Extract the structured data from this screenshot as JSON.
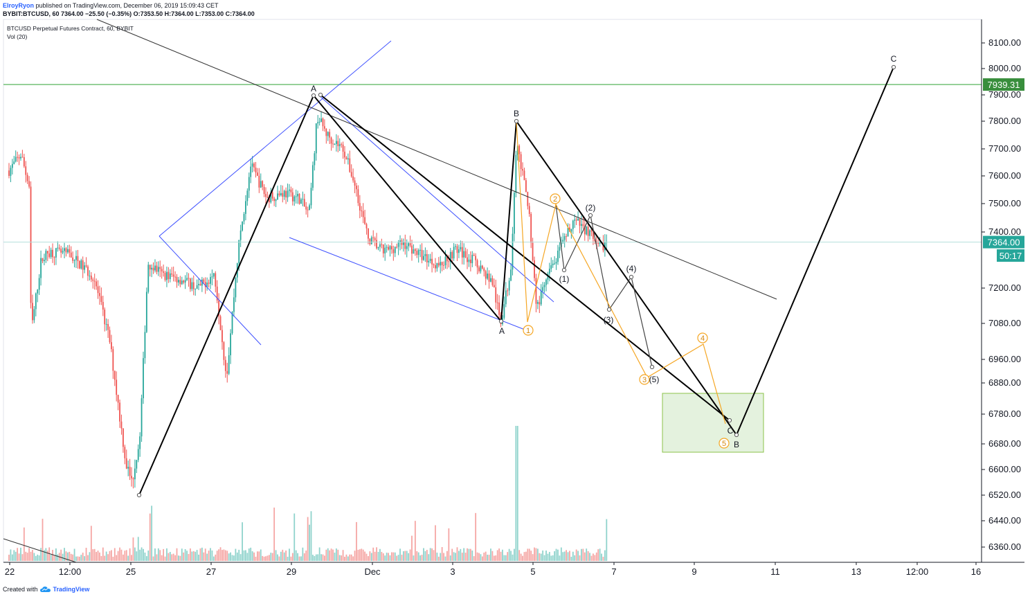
{
  "header": {
    "author": "ElroyRyon",
    "published": "published on TradingView.com, December 06, 2019 15:09:43 CET",
    "ohlc": "BYBIT:BTCUSD, 60  7364.00  −25.50 (−0.35%)  O:7353.50  H:7364.00  L:7353.00  C:7364.00"
  },
  "footer": {
    "created": "Created with",
    "brand": "TradingView",
    "logo_icon": "tradingview-logo-icon"
  },
  "chart_data": {
    "type": "candlestick",
    "title": "BTCUSD Perpetual Futures Contract, 60, BYBIT",
    "indicator": "Vol (20)",
    "ylim": [
      6300,
      8180
    ],
    "x_ticks": [
      "22",
      "12:00",
      "25",
      "27",
      "29",
      "Dec",
      "3",
      "5",
      "7",
      "9",
      "11",
      "13",
      "12:00",
      "16"
    ],
    "y_ticks": [
      6360,
      6440,
      6520,
      6600,
      6680,
      6780,
      6880,
      6960,
      7080,
      7200,
      7400,
      7500,
      7600,
      7700,
      7800,
      7900,
      8000,
      8100
    ],
    "y_tick_labels": [
      "6360.00",
      "6440.00",
      "6520.00",
      "6600.00",
      "6680.00",
      "6780.00",
      "6880.00",
      "6960.00",
      "7080.00",
      "7200.00",
      "7400.00",
      "7500.00",
      "7600.00",
      "7700.00",
      "7800.00",
      "7900.00",
      "8000.00",
      "8100.00"
    ],
    "price_labels": [
      {
        "text": "7939.31",
        "value": 7939.31,
        "color": "#388e3c"
      },
      {
        "text": "7364.00",
        "value": 7364.0,
        "color": "#26a69a"
      },
      {
        "text": "50:17",
        "value": 7316,
        "color": "#26a69a"
      }
    ],
    "horizontal_line": {
      "value": 7939.31,
      "color": "#66bb6a"
    },
    "current_price": 7364.0,
    "key_points": [
      {
        "date": "Nov 25",
        "price": 6520
      },
      {
        "date": "Nov 29",
        "price": 7900
      },
      {
        "date": "Dec 4",
        "price": 7090
      },
      {
        "date": "Dec 4",
        "price": 7800
      },
      {
        "date": "Dec 5",
        "price": 7280
      }
    ],
    "wave_labels_black": [
      "A",
      "A",
      "B",
      "(1)",
      "(2)",
      "(3)",
      "(4)",
      "(5)",
      "C",
      "B",
      "C"
    ],
    "wave_labels_orange": [
      "1",
      "2",
      "3",
      "4",
      "5"
    ],
    "colors": {
      "up": "#26a69a",
      "down": "#ef5350",
      "wave": "#000000",
      "orange": "#f5a623",
      "channel": "#3f51ff",
      "box": "#d9ecd0"
    }
  }
}
